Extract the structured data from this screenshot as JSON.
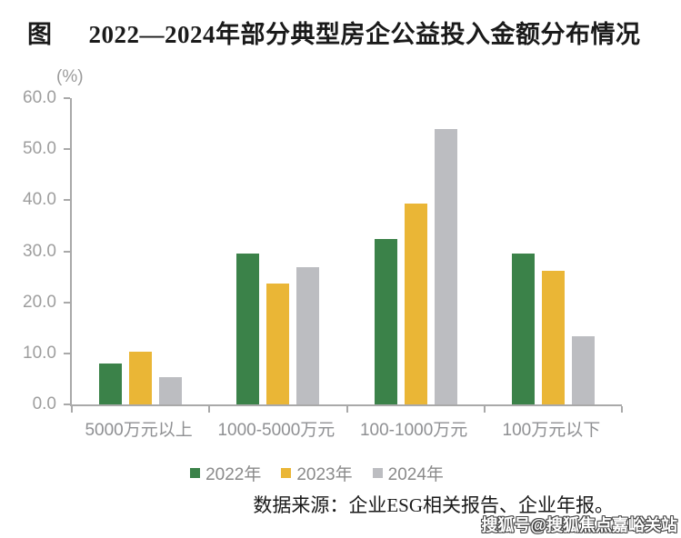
{
  "title": {
    "prefix": "图",
    "text": "2022—2024年部分典型房企公益投入金额分布情况"
  },
  "chart_data": {
    "type": "bar",
    "unit_label": "(%)",
    "categories": [
      "5000万元以上",
      "1000-5000万元",
      "100-1000万元",
      "100万元以下"
    ],
    "series": [
      {
        "name": "2022年",
        "color": "#3b8249",
        "values": [
          8.0,
          29.5,
          32.4,
          29.5
        ]
      },
      {
        "name": "2023年",
        "color": "#eab636",
        "values": [
          10.3,
          23.6,
          39.4,
          26.2
        ]
      },
      {
        "name": "2024年",
        "color": "#bcbdc1",
        "values": [
          5.4,
          26.9,
          54.0,
          13.4
        ]
      }
    ],
    "ylim": [
      0,
      60
    ],
    "y_ticks": [
      "60.0",
      "50.0",
      "40.0",
      "30.0",
      "20.0",
      "10.0",
      "0.0"
    ],
    "grid": false,
    "legend_position": "bottom"
  },
  "source_note": "数据来源：企业ESG相关报告、企业年报。",
  "watermark": "搜狐号@搜狐焦点嘉峪关站",
  "colors": {
    "axis": "#a9a9a9",
    "tick_label": "#9e9e9e",
    "category_label": "#8f9093",
    "legend_label": "#8a8a8a",
    "series_2022": "#3b8249",
    "series_2023": "#eab636",
    "series_2024": "#bcbdc1"
  }
}
